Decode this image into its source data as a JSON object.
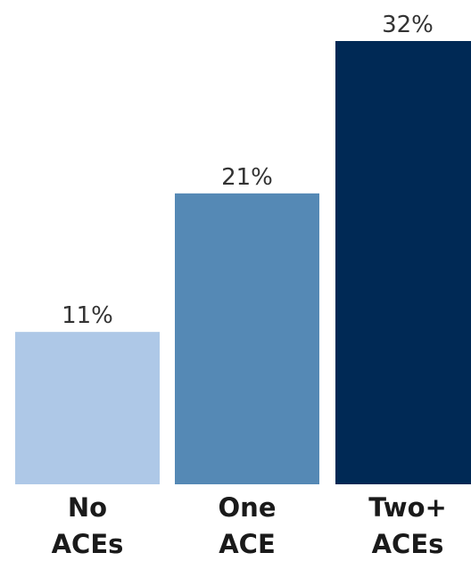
{
  "chart_data": {
    "type": "bar",
    "categories": [
      "No ACEs",
      "One ACE",
      "Two+ ACEs"
    ],
    "category_lines": [
      [
        "No",
        "ACEs"
      ],
      [
        "One",
        "ACE"
      ],
      [
        "Two+",
        "ACEs"
      ]
    ],
    "values": [
      11,
      21,
      32
    ],
    "value_labels": [
      "11%",
      "21%",
      "32%"
    ],
    "colors": [
      "#aec8e7",
      "#5589b5",
      "#002955"
    ],
    "title": "",
    "xlabel": "",
    "ylabel": "",
    "ylim": [
      0,
      32
    ],
    "grid": false,
    "legend": "none"
  }
}
